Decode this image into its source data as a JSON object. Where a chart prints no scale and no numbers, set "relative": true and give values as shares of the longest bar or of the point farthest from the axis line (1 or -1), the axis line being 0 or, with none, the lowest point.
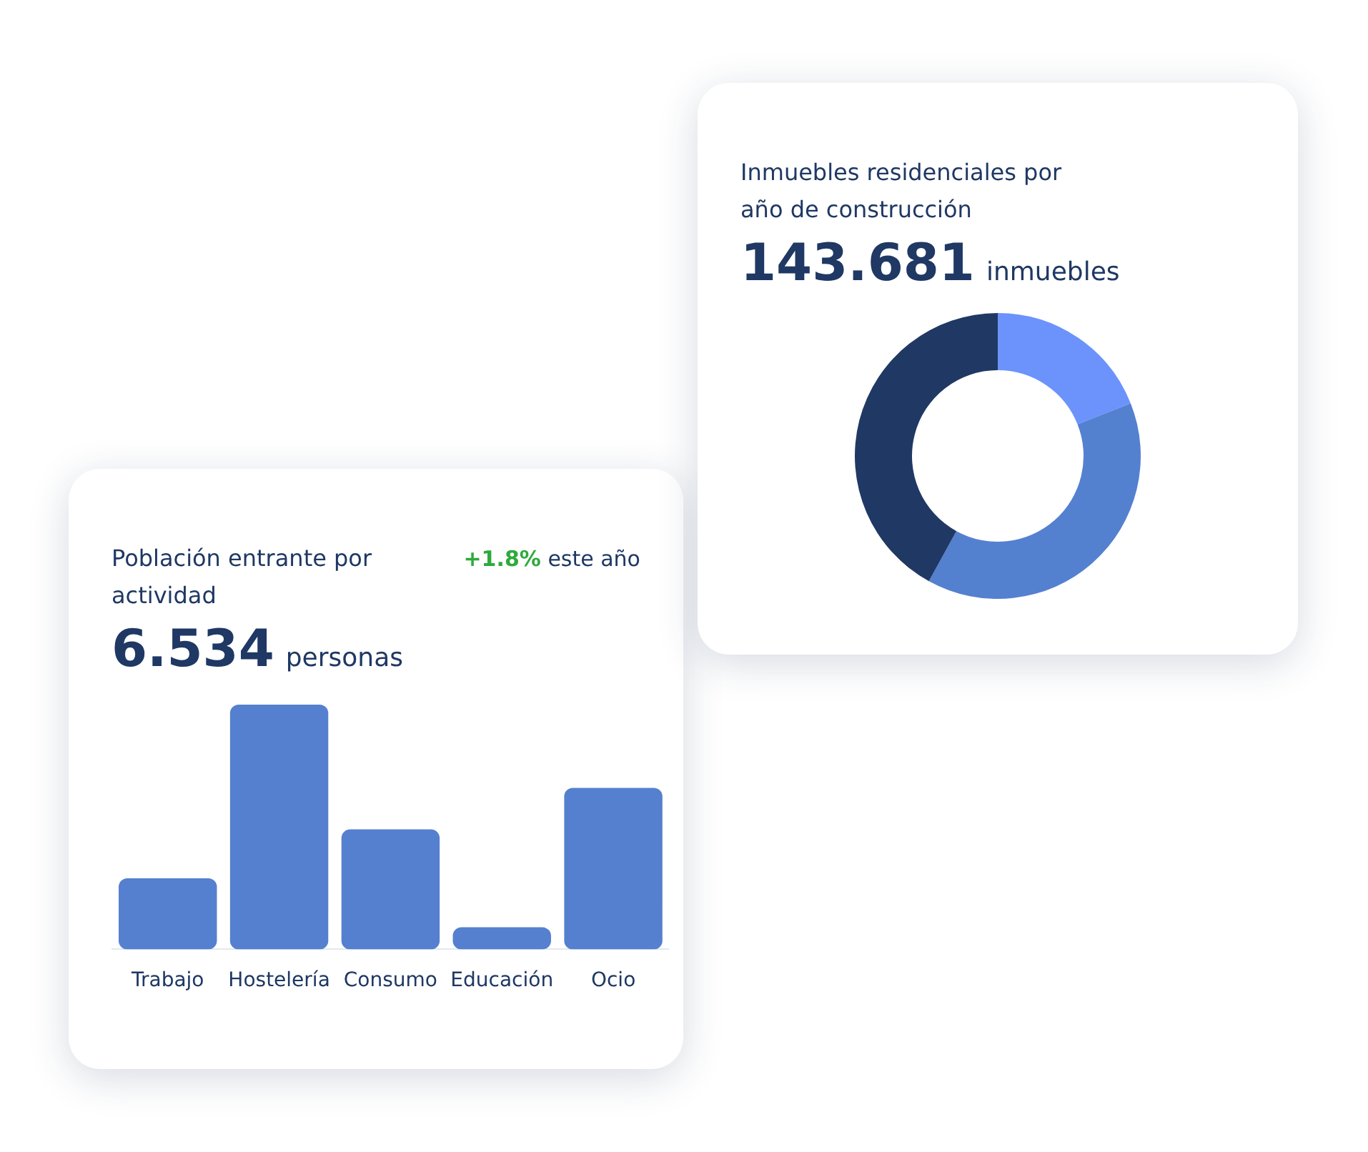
{
  "chart_data": [
    {
      "type": "donut",
      "title": "Inmuebles residenciales por año de construcción",
      "subtitle": "143.681 inmuebles",
      "categories": [
        null,
        null,
        null
      ],
      "values": [
        19,
        39,
        42
      ],
      "colors": [
        "#6b93fb",
        "#5480d0",
        "#203864"
      ]
    },
    {
      "type": "bar",
      "title": "Población entrante por actividad",
      "subtitle": "6.534 personas",
      "annotations": [
        "+1.8% este año"
      ],
      "categories": [
        "Trabajo",
        "Hostelería",
        "Consumo",
        "Educación",
        "Ocio"
      ],
      "values": [
        0.29,
        1,
        0.49,
        0.09,
        0.66
      ],
      "color": "#5580cf",
      "relative": true
    }
  ]
}
